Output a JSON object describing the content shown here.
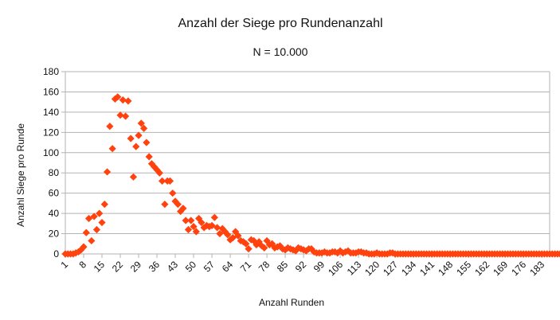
{
  "chart_data": {
    "type": "scatter",
    "title": "Anzahl der Siege pro Rundenanzahl",
    "subtitle": "N = 10.000",
    "xlabel": "Anzahl Runden",
    "ylabel": "Anzahl Siege pro Runde",
    "xlim": [
      1,
      186
    ],
    "ylim": [
      0,
      180
    ],
    "y_ticks": [
      0,
      20,
      40,
      60,
      80,
      100,
      120,
      140,
      160,
      180
    ],
    "x_ticks": [
      1,
      8,
      15,
      22,
      29,
      36,
      43,
      50,
      57,
      64,
      71,
      78,
      85,
      92,
      99,
      106,
      113,
      120,
      127,
      134,
      141,
      148,
      155,
      162,
      169,
      176,
      183
    ],
    "grid": true,
    "marker_color": "#ff420e",
    "x_start": 1,
    "values": [
      0,
      0,
      0,
      0,
      1,
      2,
      4,
      7,
      21,
      35,
      13,
      37,
      24,
      40,
      31,
      49,
      81,
      126,
      104,
      153,
      155,
      137,
      152,
      136,
      151,
      114,
      76,
      106,
      117,
      129,
      124,
      110,
      96,
      89,
      86,
      83,
      80,
      72,
      49,
      72,
      72,
      60,
      52,
      49,
      42,
      45,
      33,
      24,
      33,
      27,
      22,
      35,
      31,
      26,
      28,
      27,
      28,
      36,
      26,
      20,
      25,
      22,
      19,
      14,
      16,
      22,
      18,
      13,
      12,
      10,
      5,
      14,
      13,
      9,
      12,
      8,
      6,
      13,
      9,
      10,
      6,
      7,
      8,
      5,
      4,
      6,
      5,
      4,
      3,
      6,
      5,
      4,
      3,
      5,
      5,
      2,
      1,
      1,
      1,
      2,
      1,
      1,
      2,
      2,
      1,
      3,
      1,
      2,
      3,
      1,
      1,
      1,
      2,
      2,
      1,
      1,
      0,
      0,
      0,
      1,
      0,
      0,
      0,
      0,
      1,
      1,
      0,
      0,
      0,
      0,
      0,
      0,
      0,
      0,
      0,
      0,
      0,
      0,
      0,
      0,
      0,
      0,
      0,
      0,
      0,
      0,
      0,
      0,
      0,
      0,
      0,
      0,
      0,
      0,
      0,
      0,
      0,
      0,
      0,
      0,
      0,
      0,
      0,
      0,
      0,
      0,
      0,
      0,
      0,
      0,
      0,
      0,
      0,
      0,
      0,
      0,
      0,
      0,
      0,
      0,
      0,
      0,
      0,
      0,
      0,
      0,
      0,
      0,
      0,
      0,
      1
    ]
  }
}
